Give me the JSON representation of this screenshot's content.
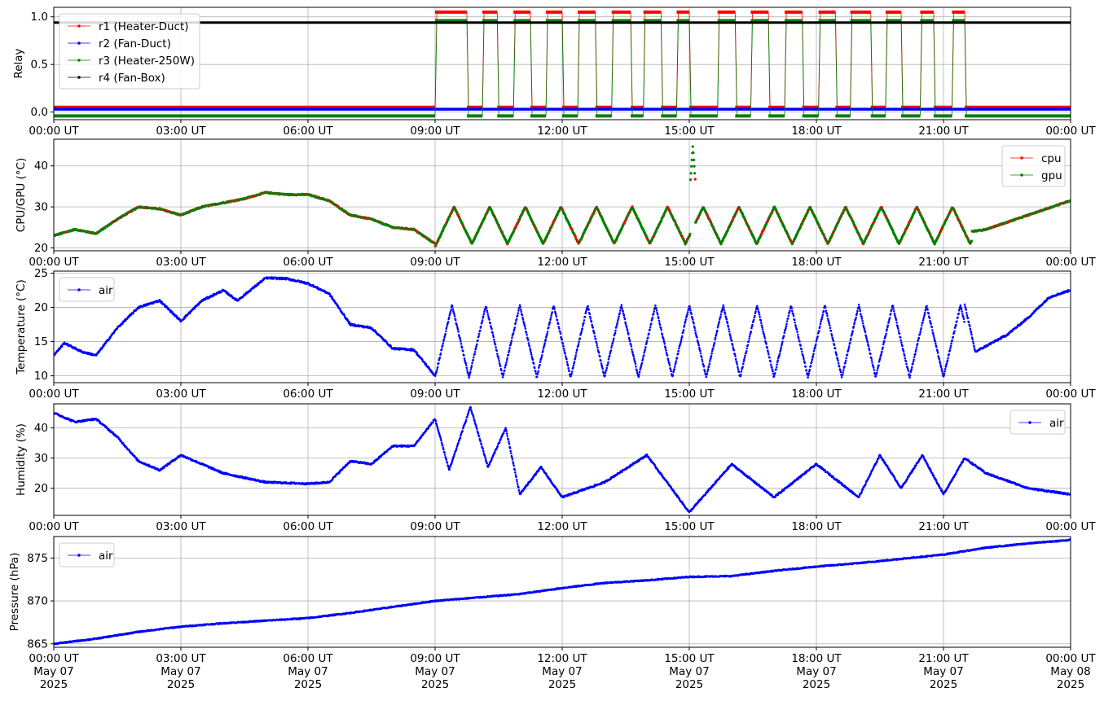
{
  "chart_data": [
    {
      "type": "line",
      "ylabel": "Relay",
      "ylim": [
        -0.08,
        1.1
      ],
      "yticks": [
        0.0,
        0.5,
        1.0
      ],
      "ytick_labels": [
        "0.0",
        "0.5",
        "1.0"
      ],
      "grid": true,
      "legend_placement": "upper-left",
      "x_domain": [
        "2025-05-07T00:00",
        "2025-05-08T00:00"
      ],
      "series": [
        {
          "name": "r1 (Heater-Duct)",
          "color": "#ff0000",
          "offset": 0.05,
          "on_intervals": [
            [
              "09:00",
              "09:45"
            ],
            [
              "10:07",
              "10:28"
            ],
            [
              "10:51",
              "11:15"
            ],
            [
              "11:37",
              "12:00"
            ],
            [
              "12:22",
              "12:47"
            ],
            [
              "13:10",
              "13:37"
            ],
            [
              "13:55",
              "14:20"
            ],
            [
              "14:42",
              "15:00"
            ],
            [
              "15:40",
              "16:05"
            ],
            [
              "16:27",
              "16:52"
            ],
            [
              "17:15",
              "17:40"
            ],
            [
              "18:03",
              "18:27"
            ],
            [
              "18:48",
              "19:17"
            ],
            [
              "19:38",
              "20:00"
            ],
            [
              "20:27",
              "20:46"
            ],
            [
              "21:12",
              "21:30"
            ]
          ]
        },
        {
          "name": "r2 (Fan-Duct)",
          "color": "#0000ff",
          "offset": 0.03,
          "constant": 0
        },
        {
          "name": "r3 (Heater-250W)",
          "color": "#008000",
          "offset": -0.04,
          "on_intervals": [
            [
              "09:00",
              "09:45"
            ],
            [
              "10:07",
              "10:28"
            ],
            [
              "10:51",
              "11:15"
            ],
            [
              "11:37",
              "12:00"
            ],
            [
              "12:22",
              "12:47"
            ],
            [
              "13:10",
              "13:37"
            ],
            [
              "13:55",
              "14:20"
            ],
            [
              "14:42",
              "15:00"
            ],
            [
              "15:40",
              "16:05"
            ],
            [
              "16:27",
              "16:52"
            ],
            [
              "17:15",
              "17:40"
            ],
            [
              "18:03",
              "18:27"
            ],
            [
              "18:48",
              "19:17"
            ],
            [
              "19:38",
              "20:00"
            ],
            [
              "20:27",
              "20:46"
            ],
            [
              "21:12",
              "21:30"
            ]
          ]
        },
        {
          "name": "r4 (Fan-Box)",
          "color": "#000000",
          "offset": -0.06,
          "constant": 1
        }
      ]
    },
    {
      "type": "scatter",
      "ylabel": "CPU/GPU (°C)",
      "ylim": [
        19.3,
        46.5
      ],
      "yticks": [
        20,
        30,
        40
      ],
      "ytick_labels": [
        "20",
        "30",
        "40"
      ],
      "grid": true,
      "legend_placement": "upper-right",
      "series": [
        {
          "name": "cpu",
          "color": "#ff0000",
          "x": [
            "00:00",
            "00:30",
            "01:00",
            "01:30",
            "02:00",
            "02:30",
            "03:00",
            "03:30",
            "04:00",
            "04:30",
            "05:00",
            "05:30",
            "06:00",
            "06:30",
            "07:00",
            "07:30",
            "08:00",
            "08:30",
            "09:00"
          ],
          "y": [
            23,
            24.5,
            23.5,
            27,
            30,
            29.5,
            28,
            30,
            31,
            32,
            33.5,
            33,
            33,
            31.5,
            28,
            27,
            25,
            24.5,
            21
          ]
        },
        {
          "name": "gpu",
          "color": "#008000",
          "x": [
            "00:00",
            "00:30",
            "01:00",
            "01:30",
            "02:00",
            "02:30",
            "03:00",
            "03:30",
            "04:00",
            "04:30",
            "05:00",
            "05:30",
            "06:00",
            "06:30",
            "07:00",
            "07:30",
            "08:00",
            "08:30",
            "09:00"
          ],
          "y": [
            23,
            24.5,
            23.5,
            27,
            30,
            29.5,
            28,
            30,
            31,
            32,
            33.5,
            33,
            33,
            31.5,
            28,
            27,
            25,
            24.5,
            21
          ]
        }
      ],
      "oscillation": {
        "start": "09:00",
        "end": "21:40",
        "min": 21,
        "max": 30,
        "spike_time": "15:05",
        "spike_max": 44.8
      },
      "late_trend": {
        "x": [
          "21:40",
          "22:00",
          "23:00",
          "23:59"
        ],
        "y": [
          24,
          24.5,
          28,
          31.5
        ]
      }
    },
    {
      "type": "scatter",
      "ylabel": "Temperature (°C)",
      "ylim": [
        9,
        25.3
      ],
      "yticks": [
        10,
        15,
        20,
        25
      ],
      "ytick_labels": [
        "10",
        "15",
        "20",
        "25"
      ],
      "grid": true,
      "legend_placement": "upper-left",
      "series": [
        {
          "name": "air",
          "color": "#0000ff",
          "x": [
            "00:00",
            "00:15",
            "00:40",
            "01:00",
            "01:30",
            "02:00",
            "02:30",
            "02:45",
            "03:00",
            "03:30",
            "04:00",
            "04:20",
            "05:00",
            "05:30",
            "06:00",
            "06:30",
            "07:00",
            "07:30",
            "08:00",
            "08:30",
            "09:00"
          ],
          "y": [
            13,
            14.8,
            13.5,
            13,
            17,
            20,
            21,
            19.5,
            18,
            21,
            22.5,
            21,
            24.3,
            24.2,
            23.5,
            22,
            17.5,
            17,
            14,
            13.8,
            10
          ]
        },
        {
          "name": "",
          "color": "#0000ff",
          "x": [
            "21:30",
            "21:45",
            "22:30",
            "23:00",
            "23:30",
            "23:59"
          ],
          "y": [
            20.5,
            13.5,
            16,
            18.5,
            21.5,
            22.5
          ]
        }
      ],
      "oscillation": {
        "start": "09:00",
        "end": "21:30",
        "min": 9.8,
        "max": 20.3
      }
    },
    {
      "type": "scatter",
      "ylabel": "Humidity (%)",
      "ylim": [
        11,
        48
      ],
      "yticks": [
        20,
        30,
        40
      ],
      "ytick_labels": [
        "20",
        "30",
        "40"
      ],
      "grid": true,
      "legend_placement": "upper-right",
      "series": [
        {
          "name": "air",
          "color": "#0000ff",
          "x": [
            "00:00",
            "00:30",
            "01:00",
            "01:30",
            "02:00",
            "02:30",
            "03:00",
            "03:30",
            "04:00",
            "05:00",
            "06:00",
            "06:30",
            "07:00",
            "07:30",
            "08:00",
            "08:30",
            "09:00",
            "09:20",
            "09:50",
            "10:15",
            "10:40",
            "11:00",
            "11:30",
            "12:00",
            "13:00",
            "14:00",
            "15:00",
            "16:00",
            "17:00",
            "18:00",
            "19:00",
            "19:30",
            "20:00",
            "20:30",
            "21:00",
            "21:30",
            "22:00",
            "23:00",
            "23:59"
          ],
          "y": [
            45,
            42,
            43,
            37,
            29,
            26,
            31,
            28,
            25,
            22,
            21.5,
            22,
            29,
            28,
            34,
            34,
            43,
            26,
            47,
            27,
            40,
            18,
            27,
            17,
            22,
            31,
            12,
            28,
            17,
            28,
            17,
            31,
            20,
            31,
            18,
            30,
            25,
            20,
            18
          ]
        }
      ]
    },
    {
      "type": "scatter",
      "ylabel": "Pressure (hPa)",
      "ylim": [
        864.6,
        877.5
      ],
      "yticks": [
        865,
        870,
        875
      ],
      "ytick_labels": [
        "865",
        "870",
        "875"
      ],
      "grid": true,
      "legend_placement": "upper-left",
      "series": [
        {
          "name": "air",
          "color": "#0000ff",
          "x": [
            "00:00",
            "01:00",
            "02:00",
            "03:00",
            "04:00",
            "05:00",
            "06:00",
            "07:00",
            "08:00",
            "09:00",
            "10:00",
            "11:00",
            "12:00",
            "13:00",
            "14:00",
            "15:00",
            "16:00",
            "17:00",
            "18:00",
            "19:00",
            "20:00",
            "21:00",
            "22:00",
            "23:00",
            "23:59"
          ],
          "y": [
            865,
            865.6,
            866.4,
            867,
            867.4,
            867.7,
            868,
            868.6,
            869.3,
            870,
            870.4,
            870.8,
            871.5,
            872.1,
            872.4,
            872.8,
            872.9,
            873.5,
            874,
            874.4,
            874.9,
            875.4,
            876.2,
            876.7,
            877.1
          ]
        }
      ]
    }
  ],
  "x_tick_labels": [
    "00:00 UT",
    "03:00 UT",
    "06:00 UT",
    "09:00 UT",
    "12:00 UT",
    "15:00 UT",
    "18:00 UT",
    "21:00 UT",
    "00:00 UT"
  ],
  "x_tick_dates": [
    "May 07",
    "May 07",
    "May 07",
    "May 07",
    "May 07",
    "May 07",
    "May 07",
    "May 07",
    "May 08"
  ],
  "x_tick_years": [
    "2025",
    "2025",
    "2025",
    "2025",
    "2025",
    "2025",
    "2025",
    "2025",
    "2025"
  ]
}
